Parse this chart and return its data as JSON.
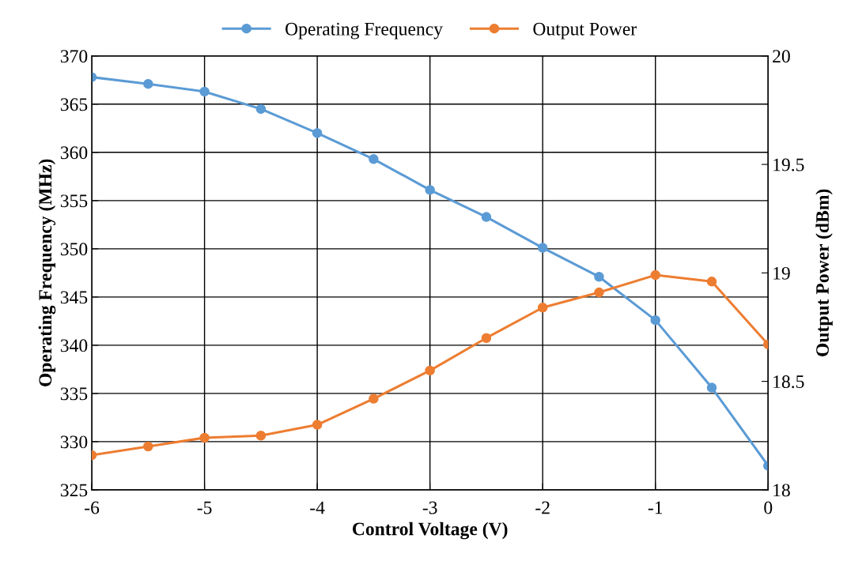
{
  "chart_data": {
    "type": "line",
    "xlabel": "Control Voltage (V)",
    "ylabel": "Operating Frequency (MHz)",
    "y2label": "Output Power (dBm)",
    "x": [
      -6,
      -5.5,
      -5,
      -4.5,
      -4,
      -3.5,
      -3,
      -2.5,
      -2,
      -1.5,
      -1,
      -0.5,
      0
    ],
    "series": [
      {
        "name": "Operating Frequency",
        "color": "#5b9bd5",
        "values": [
          367.8,
          367.1,
          366.3,
          364.5,
          362.0,
          359.3,
          356.1,
          353.3,
          350.1,
          347.1,
          342.6,
          335.6,
          327.5
        ]
      },
      {
        "name": "Output Power",
        "color": "#ed7d31",
        "axis": "y2",
        "values": [
          18.16,
          18.2,
          18.24,
          18.25,
          18.3,
          18.42,
          18.55,
          18.7,
          18.84,
          18.91,
          18.99,
          18.96,
          18.67
        ]
      }
    ],
    "xlim": [
      -6,
      0
    ],
    "xticks": [
      -6,
      -5,
      -4,
      -3,
      -2,
      -1,
      0
    ],
    "ylim": [
      325,
      370
    ],
    "yticks": [
      325,
      330,
      335,
      340,
      345,
      350,
      355,
      360,
      365,
      370
    ],
    "y2lim": [
      18,
      20
    ],
    "y2ticks": [
      18,
      18.5,
      19,
      19.5,
      20
    ],
    "grid": true,
    "legend": "top",
    "marker": "circle",
    "line_style": "solid"
  }
}
